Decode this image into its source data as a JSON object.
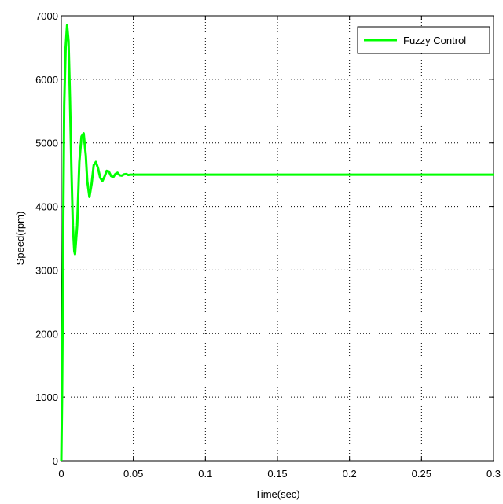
{
  "chart_data": {
    "type": "line",
    "title": "",
    "xlabel": "Time(sec)",
    "ylabel": "Speed(rpm)",
    "xlim": [
      0,
      0.3
    ],
    "ylim": [
      0,
      7000
    ],
    "xticks": [
      0,
      0.05,
      0.1,
      0.15,
      0.2,
      0.25,
      0.3
    ],
    "xtick_labels": [
      "0",
      "0.05",
      "0.1",
      "0.15",
      "0.2",
      "0.25",
      "0.3"
    ],
    "yticks": [
      0,
      1000,
      2000,
      3000,
      4000,
      5000,
      6000,
      7000
    ],
    "ytick_labels": [
      "0",
      "1000",
      "2000",
      "3000",
      "4000",
      "5000",
      "6000",
      "7000"
    ],
    "grid": true,
    "legend_position": "top-right",
    "series": [
      {
        "name": "Fuzzy Control",
        "color": "#00ff00",
        "x": [
          0,
          0.0005,
          0.001,
          0.0015,
          0.002,
          0.003,
          0.004,
          0.005,
          0.006,
          0.007,
          0.008,
          0.009,
          0.0095,
          0.011,
          0.0125,
          0.014,
          0.0155,
          0.017,
          0.018,
          0.0195,
          0.021,
          0.0225,
          0.024,
          0.0255,
          0.027,
          0.0285,
          0.03,
          0.0315,
          0.033,
          0.0345,
          0.036,
          0.0375,
          0.039,
          0.0405,
          0.042,
          0.0435,
          0.045,
          0.0465,
          0.048,
          0.05,
          0.052,
          0.3
        ],
        "y": [
          0,
          1000,
          2500,
          4200,
          5600,
          6500,
          6850,
          6600,
          5700,
          4600,
          3700,
          3300,
          3250,
          3700,
          4700,
          5100,
          5150,
          4800,
          4400,
          4150,
          4350,
          4650,
          4700,
          4600,
          4450,
          4400,
          4470,
          4560,
          4550,
          4480,
          4460,
          4510,
          4530,
          4490,
          4485,
          4505,
          4510,
          4495,
          4500,
          4500,
          4500,
          4500
        ]
      }
    ]
  }
}
